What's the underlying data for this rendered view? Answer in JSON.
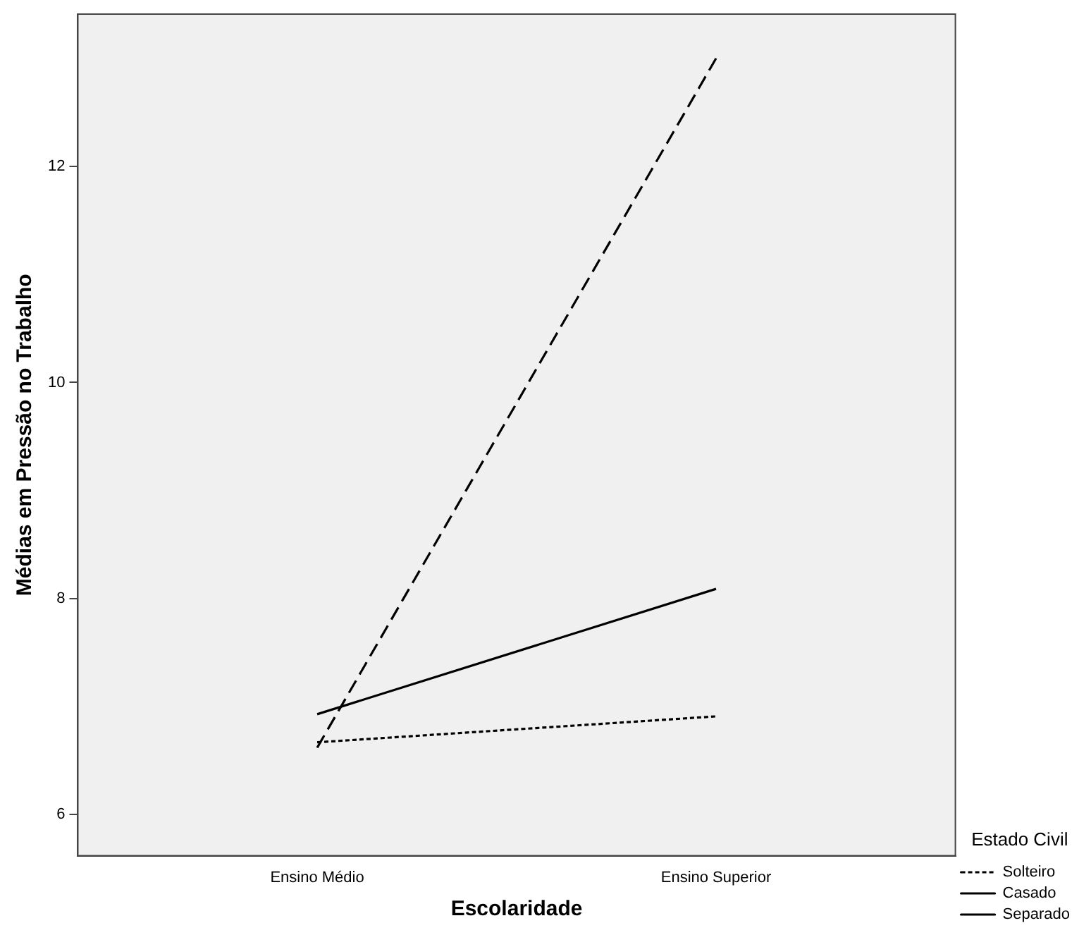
{
  "chart_data": {
    "type": "line",
    "xlabel": "Escolaridade",
    "ylabel": "Médias em Pressão no Trabalho",
    "legend_title": "Estado Civil",
    "categories": [
      "Ensino Médio",
      "Ensino Superior"
    ],
    "series": [
      {
        "name": "Solteiro",
        "color": "#000000",
        "line_style": "dotted",
        "values": [
          6.67,
          6.91
        ]
      },
      {
        "name": "Casado",
        "color": "#000000",
        "line_style": "solid",
        "values": [
          6.93,
          8.09
        ]
      },
      {
        "name": "Separado",
        "color": "#000000",
        "line_style": "dashed",
        "values": [
          6.62,
          13.0
        ]
      }
    ],
    "ylim": [
      5.62,
      13.41
    ],
    "yticks": [
      6,
      8,
      10,
      12
    ],
    "grid": false,
    "legend": "right",
    "marker": "none"
  }
}
